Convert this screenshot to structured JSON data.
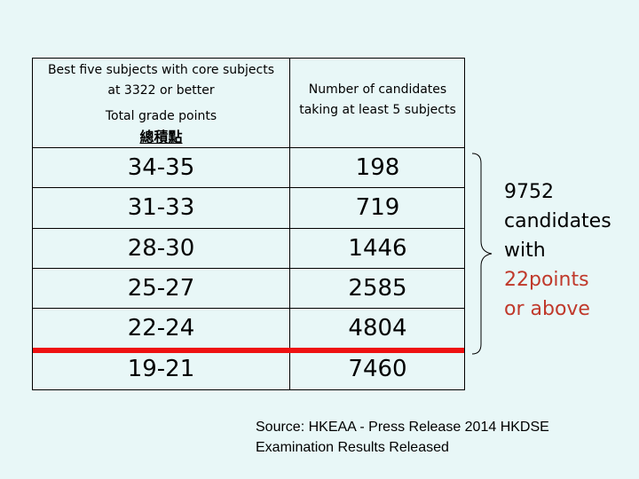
{
  "table": {
    "header_left_line1": "Best five subjects with core subjects",
    "header_left_line2": "at 3322 or better",
    "header_left_total": "Total grade points",
    "header_left_chinese": "總積點",
    "header_right_line1": "Number of  candidates",
    "header_right_line2": "taking at least 5 subjects",
    "rows": [
      {
        "range": "34-35",
        "count": "198"
      },
      {
        "range": "31-33",
        "count": "719"
      },
      {
        "range": "28-30",
        "count": "1446"
      },
      {
        "range": "25-27",
        "count": "2585"
      },
      {
        "range": "22-24",
        "count": "4804"
      },
      {
        "range": "19-21",
        "count": "7460"
      }
    ]
  },
  "annotation": {
    "line1": "9752",
    "line2": "candidates",
    "line3": "with",
    "line4": "22points",
    "line5": "or above",
    "highlight_color": "#c0392b"
  },
  "source": {
    "line1": "Source: HKEAA - Press Release 2014 HKDSE",
    "line2": "Examination Results Released"
  },
  "colors": {
    "background": "#e8f7f7",
    "cutoff_line": "#ee1111"
  }
}
